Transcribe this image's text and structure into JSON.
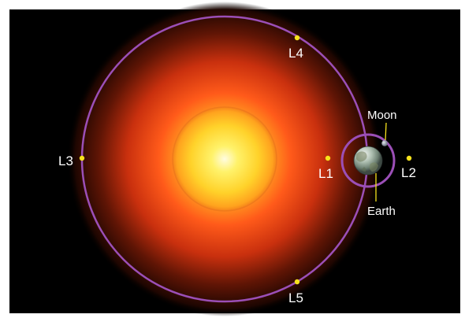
{
  "colors": {
    "background": "#000000",
    "orbit": "#9b4fb7",
    "lagrange_point": "#f6e21c",
    "label": "#ffffff"
  },
  "points": {
    "l1": "L1",
    "l2": "L2",
    "l3": "L3",
    "l4": "L4",
    "l5": "L5"
  },
  "bodies": {
    "moon": "Moon",
    "earth": "Earth"
  }
}
